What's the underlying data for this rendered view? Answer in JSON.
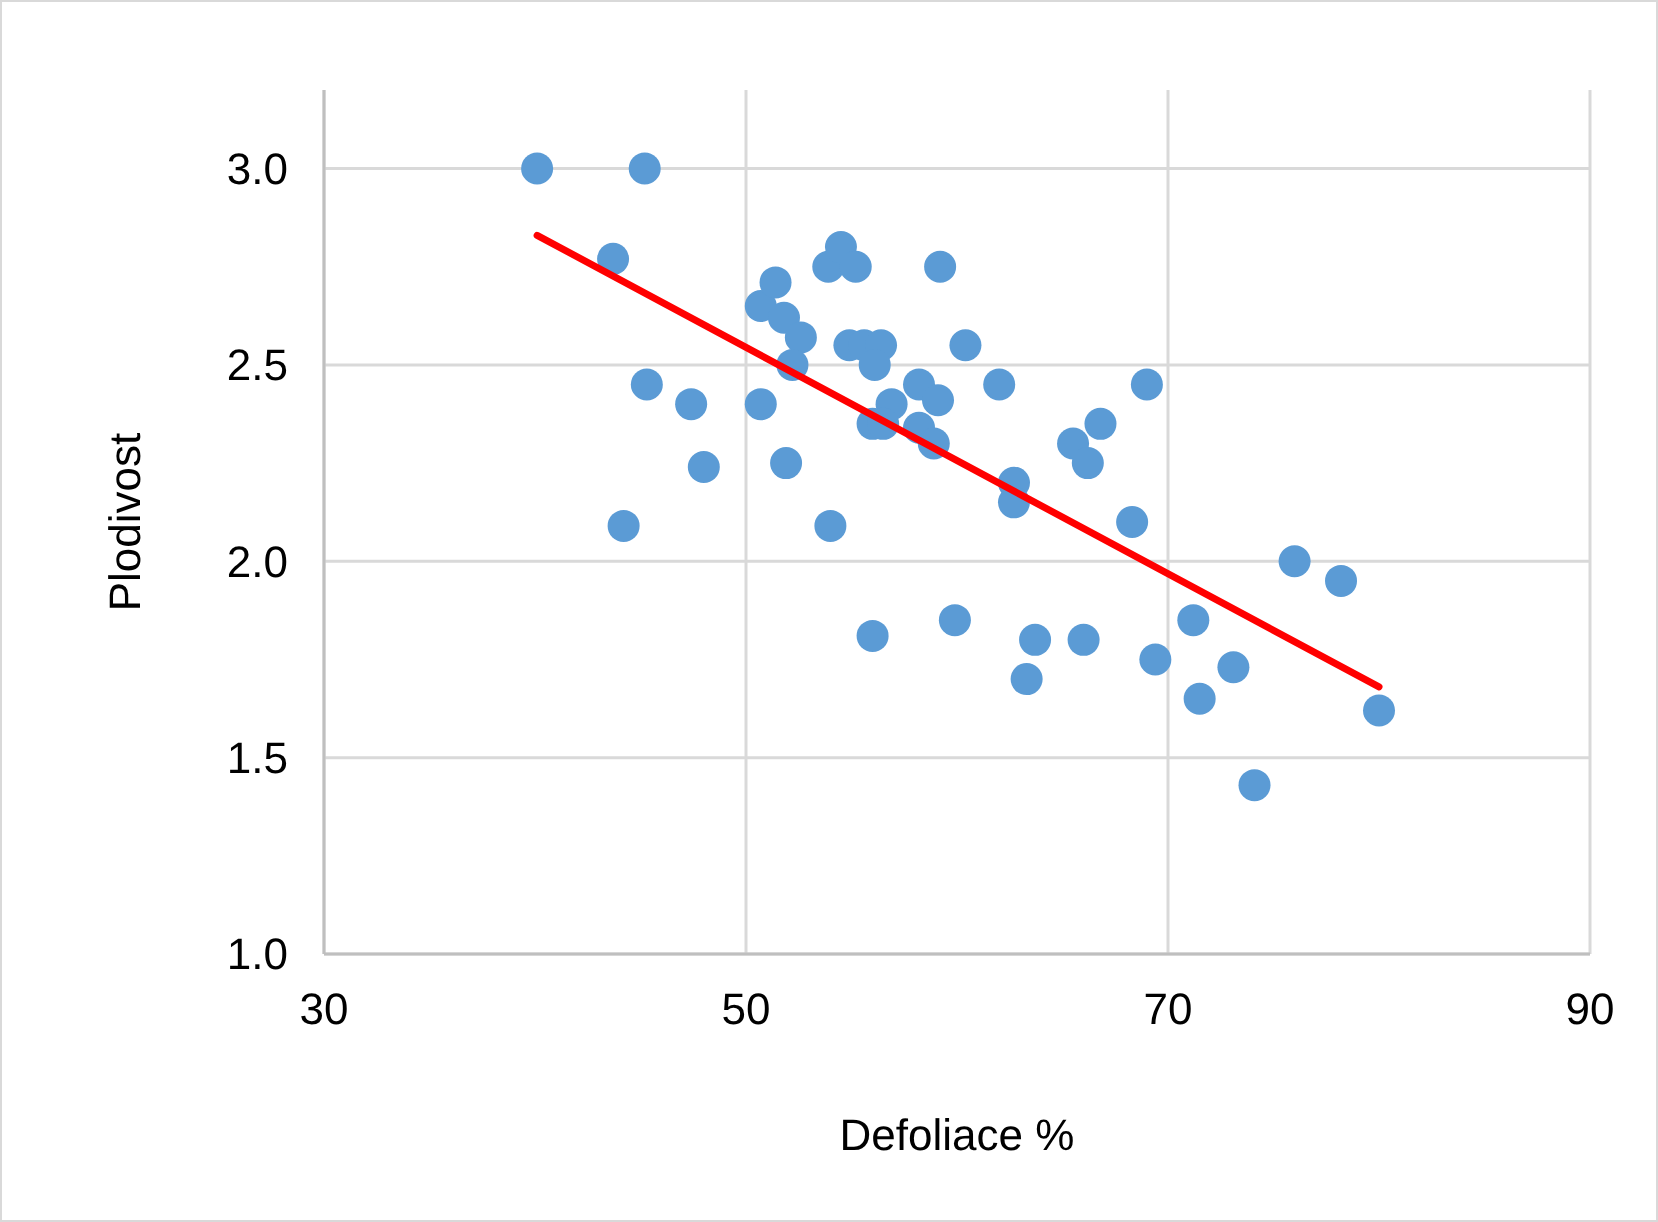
{
  "chart_data": {
    "type": "scatter",
    "xlabel": "Defoliace %",
    "ylabel": "Plodivost",
    "xlim": [
      30,
      90
    ],
    "xticks": [
      30,
      50,
      70,
      90
    ],
    "ylim": [
      1,
      3.2
    ],
    "yticks": [
      {
        "value": 1,
        "label": "1.0"
      },
      {
        "value": 1.5,
        "label": "1.5"
      },
      {
        "value": 2,
        "label": "2.0"
      },
      {
        "value": 2.5,
        "label": "2.5"
      },
      {
        "value": 3,
        "label": "3.0"
      }
    ],
    "grid": true,
    "series": [
      {
        "color": "#5b9bd5",
        "marker": "circle",
        "x": [
          40.1,
          45.2,
          43.7,
          45.3,
          47.4,
          44.2,
          48.0,
          50.7,
          51.4,
          51.8,
          52.6,
          52.2,
          50.7,
          51.9,
          54.0,
          53.9,
          54.5,
          55.2,
          54.9,
          55.6,
          56.4,
          56.1,
          56.9,
          56.0,
          56.5,
          58.2,
          59.1,
          58.2,
          58.9,
          59.2,
          60.4,
          62.0,
          62.7,
          62.7,
          56.0,
          59.9,
          63.7,
          63.3,
          66.0,
          65.5,
          66.8,
          66.2,
          69.0,
          68.3,
          69.4,
          71.2,
          71.5,
          73.1,
          74.1,
          76.0,
          78.2,
          80.0
        ],
        "values": [
          3.0,
          3.0,
          2.77,
          2.45,
          2.4,
          2.09,
          2.24,
          2.65,
          2.71,
          2.62,
          2.57,
          2.5,
          2.4,
          2.25,
          2.09,
          2.75,
          2.8,
          2.75,
          2.55,
          2.55,
          2.55,
          2.5,
          2.4,
          2.35,
          2.35,
          2.45,
          2.41,
          2.34,
          2.3,
          2.75,
          2.55,
          2.45,
          2.2,
          2.15,
          1.81,
          1.85,
          1.8,
          1.7,
          1.8,
          2.3,
          2.35,
          2.25,
          2.45,
          2.1,
          1.75,
          1.85,
          1.65,
          1.73,
          1.43,
          2.0,
          1.95,
          1.62
        ]
      },
      {
        "type": "line",
        "color": "#ff0000",
        "marker": "none",
        "line_style": "solid",
        "x": [
          40.1,
          80.0
        ],
        "values": [
          2.83,
          1.68
        ]
      }
    ]
  }
}
